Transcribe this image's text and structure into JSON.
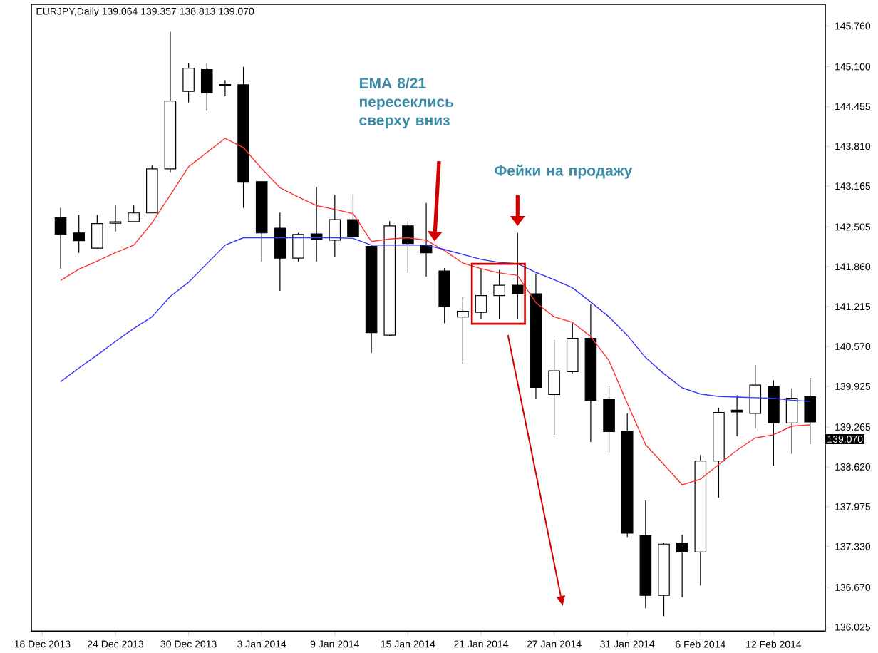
{
  "chart_data": {
    "type": "candlestick",
    "title": "EURJPY,Daily  139.064 139.357 138.813 139.070",
    "categories": [
      "18 Dec 2013",
      null,
      null,
      null,
      "24 Dec 2013",
      null,
      null,
      null,
      "30 Dec 2013",
      null,
      null,
      null,
      "3 Jan 2014",
      null,
      null,
      null,
      "9 Jan 2014",
      null,
      null,
      null,
      "15 Jan 2014",
      null,
      null,
      null,
      "21 Jan 2014",
      null,
      null,
      null,
      "27 Jan 2014",
      null,
      null,
      null,
      "31 Jan 2014",
      null,
      null,
      null,
      "6 Feb 2014",
      null,
      null,
      null,
      "12 Feb 2014",
      null,
      null
    ],
    "ohlc": [
      null,
      [
        142.652,
        142.814,
        141.831,
        142.385
      ],
      [
        142.408,
        142.699,
        142.085,
        142.283
      ],
      [
        142.161,
        142.699,
        142.15,
        142.56
      ],
      [
        142.565,
        142.853,
        142.431,
        142.588
      ],
      [
        142.592,
        142.853,
        142.592,
        142.731
      ],
      [
        142.731,
        143.499,
        142.731,
        143.446
      ],
      [
        143.446,
        145.667,
        143.391,
        144.544
      ],
      [
        144.699,
        145.16,
        144.521,
        145.075
      ],
      [
        145.052,
        145.16,
        144.383,
        144.676
      ],
      [
        144.81,
        144.883,
        144.622,
        144.8
      ],
      [
        144.807,
        145.098,
        142.814,
        143.229
      ],
      [
        143.238,
        143.24,
        141.946,
        142.408
      ],
      [
        142.484,
        142.738,
        141.469,
        141.999
      ],
      [
        141.999,
        142.408,
        141.946,
        142.385
      ],
      [
        142.392,
        143.153,
        141.946,
        142.306
      ],
      [
        142.292,
        143.022,
        142.023,
        142.622
      ],
      [
        142.622,
        143.038,
        142.35,
        142.352
      ],
      [
        142.191,
        142.21,
        140.47,
        140.793
      ],
      [
        140.754,
        142.599,
        140.73,
        142.523
      ],
      [
        142.523,
        142.599,
        141.753,
        142.237
      ],
      [
        142.214,
        142.892,
        141.7,
        142.085
      ],
      [
        141.792,
        141.838,
        140.945,
        141.215
      ],
      [
        141.047,
        141.37,
        140.292,
        141.139
      ],
      [
        141.123,
        141.831,
        141.008,
        141.393
      ],
      [
        141.393,
        141.808,
        141.008,
        141.561
      ],
      [
        141.561,
        142.408,
        141.008,
        141.423
      ],
      [
        141.423,
        141.753,
        139.716,
        139.907
      ],
      [
        139.792,
        140.678,
        139.139,
        140.177
      ],
      [
        140.161,
        140.945,
        140.138,
        140.701
      ],
      [
        140.701,
        141.254,
        139.023,
        139.7
      ],
      [
        139.716,
        139.93,
        138.855,
        139.192
      ],
      [
        139.201,
        139.485,
        137.485,
        137.547
      ],
      [
        137.508,
        138.078,
        136.332,
        136.539
      ],
      [
        136.539,
        137.393,
        136.202,
        137.37
      ],
      [
        137.386,
        137.524,
        136.509,
        137.241
      ],
      [
        137.241,
        138.809,
        136.7,
        138.717
      ],
      [
        138.717,
        139.577,
        138.124,
        139.501
      ],
      [
        139.538,
        139.778,
        139.116,
        139.508
      ],
      [
        139.485,
        140.269,
        139.238,
        139.946
      ],
      [
        139.923,
        140.023,
        138.639,
        139.331
      ],
      [
        139.331,
        139.893,
        138.832,
        139.732
      ],
      [
        139.755,
        140.062,
        138.985,
        139.347
      ]
    ],
    "series": [
      {
        "type": "line",
        "color": "#ff3333",
        "values": [
          null,
          141.64,
          141.82,
          141.95,
          142.09,
          142.21,
          142.57,
          143.02,
          143.48,
          143.71,
          143.94,
          143.79,
          143.45,
          143.14,
          142.99,
          142.85,
          142.79,
          142.72,
          142.27,
          142.31,
          142.33,
          142.29,
          142.12,
          141.92,
          141.83,
          141.76,
          141.72,
          141.28,
          141.05,
          140.96,
          140.73,
          140.34,
          139.65,
          138.98,
          138.66,
          138.33,
          138.42,
          138.66,
          138.89,
          139.09,
          139.14,
          139.28,
          139.3
        ]
      },
      {
        "type": "line",
        "color": "#3333ff",
        "values": [
          null,
          140.0,
          140.22,
          140.43,
          140.65,
          140.86,
          141.05,
          141.38,
          141.61,
          141.91,
          142.21,
          142.33,
          142.33,
          142.33,
          142.33,
          142.33,
          142.33,
          142.32,
          142.21,
          142.21,
          142.21,
          142.21,
          142.14,
          142.06,
          141.98,
          141.93,
          141.91,
          141.77,
          141.65,
          141.52,
          141.29,
          141.05,
          140.75,
          140.39,
          140.13,
          139.9,
          139.8,
          139.76,
          139.75,
          139.74,
          139.73,
          139.7,
          139.68
        ]
      }
    ],
    "ylim": [
      135.96,
      146.11
    ],
    "yticks": [
      136.025,
      {
        "value": 136.67,
        "label": "136.670"
      },
      {
        "value": 137.33,
        "label": "137.330"
      },
      137.975,
      {
        "value": 138.62,
        "label": "138.620"
      },
      139.265,
      139.925,
      {
        "value": 140.57,
        "label": "140.570"
      },
      141.215,
      {
        "value": 141.86,
        "label": "141.860"
      },
      142.505,
      143.165,
      {
        "value": 143.81,
        "label": "143.810"
      },
      144.455,
      {
        "value": 145.1,
        "label": "145.100"
      },
      {
        "value": 145.76,
        "label": "145.760"
      }
    ],
    "annotations": [
      "EMA 8/21 пересеклись сверху вниз",
      "Фейки на продажу",
      "139.070"
    ]
  }
}
